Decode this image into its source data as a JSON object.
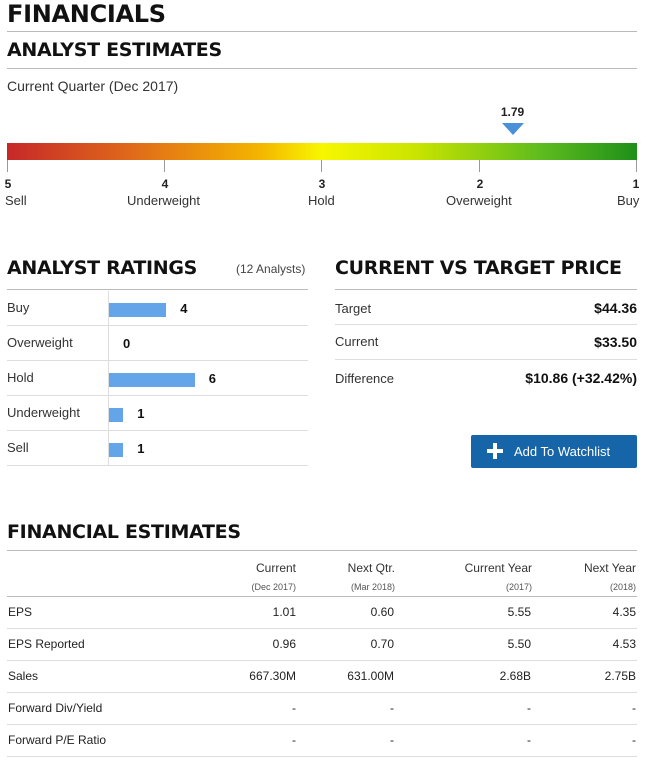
{
  "page": {
    "title": "FINANCIALS"
  },
  "analyst_estimates": {
    "heading": "ANALYST ESTIMATES",
    "quarter_label": "Current Quarter (Dec 2017)",
    "gauge": {
      "value": "1.79",
      "value_numeric": 1.79,
      "scale": [
        {
          "num": "5",
          "label": "Sell"
        },
        {
          "num": "4",
          "label": "Underweight"
        },
        {
          "num": "3",
          "label": "Hold"
        },
        {
          "num": "2",
          "label": "Overweight"
        },
        {
          "num": "1",
          "label": "Buy"
        }
      ]
    }
  },
  "analyst_ratings": {
    "heading": "ANALYST RATINGS",
    "count_label": "(12 Analysts)",
    "rows": [
      {
        "label": "Buy",
        "value": "4",
        "count": 4
      },
      {
        "label": "Overweight",
        "value": "0",
        "count": 0
      },
      {
        "label": "Hold",
        "value": "6",
        "count": 6
      },
      {
        "label": "Underweight",
        "value": "1",
        "count": 1
      },
      {
        "label": "Sell",
        "value": "1",
        "count": 1
      }
    ]
  },
  "current_vs_target": {
    "heading": "CURRENT VS TARGET PRICE",
    "target_label": "Target",
    "target_value": "$44.36",
    "current_label": "Current",
    "current_value": "$33.50",
    "difference_label": "Difference",
    "difference_value": "$10.86 (+32.42%)",
    "watchlist_button": "Add To Watchlist"
  },
  "financial_estimates": {
    "heading": "FINANCIAL ESTIMATES",
    "columns": [
      {
        "label": "Current",
        "sub": "(Dec 2017)"
      },
      {
        "label": "Next Qtr.",
        "sub": "(Mar 2018)"
      },
      {
        "label": "Current Year",
        "sub": "(2017)"
      },
      {
        "label": "Next Year",
        "sub": "(2018)"
      }
    ],
    "rows": [
      {
        "label": "EPS",
        "values": [
          "1.01",
          "0.60",
          "5.55",
          "4.35"
        ]
      },
      {
        "label": "EPS Reported",
        "values": [
          "0.96",
          "0.70",
          "5.50",
          "4.53"
        ]
      },
      {
        "label": "Sales",
        "values": [
          "667.30M",
          "631.00M",
          "2.68B",
          "2.75B"
        ]
      },
      {
        "label": "Forward Div/Yield",
        "values": [
          "-",
          "-",
          "-",
          "-"
        ]
      },
      {
        "label": "Forward P/E Ratio",
        "values": [
          "-",
          "-",
          "-",
          "-"
        ]
      }
    ]
  },
  "colors": {
    "accent_blue": "#1565a8",
    "bar_blue": "#64a4e8",
    "gauge_low": "#c62828",
    "gauge_mid": "#f7f700",
    "gauge_high": "#1f8f1a"
  }
}
